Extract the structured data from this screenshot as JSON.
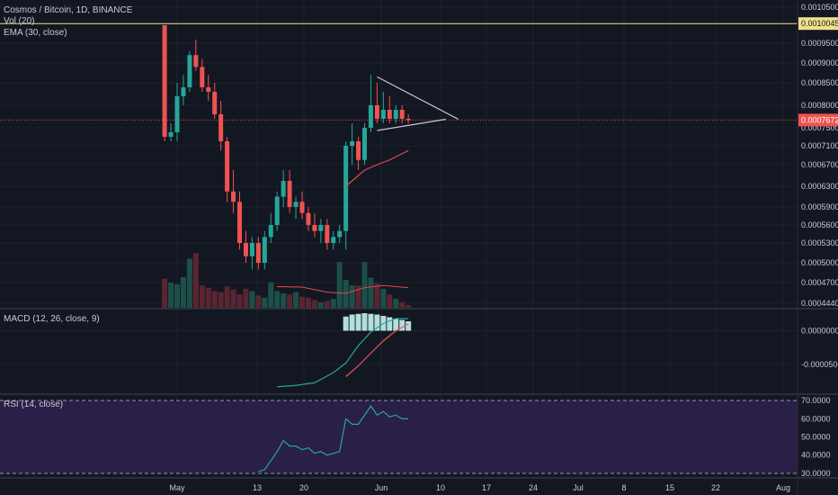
{
  "header": {
    "symbol_line": "Cosmos / Bitcoin, 1D, BINANCE",
    "ema_label": "EMA (30, close)",
    "vol_label": "Vol (20)",
    "macd_label": "MACD (12, 26, close, 9)",
    "rsi_label": "RSI (14, close)"
  },
  "price_axis": {
    "ticks": [
      "0.0010500",
      "0.0009500",
      "0.0009000",
      "0.0008500",
      "0.0008000",
      "0.0007500",
      "0.0007100",
      "0.0006700",
      "0.0006300",
      "0.0005900",
      "0.0005600",
      "0.0005300",
      "0.0005000",
      "0.0004700",
      "0.0004440"
    ],
    "alert_level": "0.0010045",
    "last_price": "0.0007672"
  },
  "macd_axis": {
    "ticks": [
      "0.0000000",
      "-0.0000500"
    ]
  },
  "rsi_axis": {
    "ticks": [
      "70.0000",
      "60.0000",
      "50.0000",
      "40.0000",
      "30.0000"
    ]
  },
  "time_axis": {
    "ticks": [
      "May",
      "13",
      "20",
      "Jun",
      "10",
      "17",
      "24",
      "Jul",
      "8",
      "15",
      "22",
      "Aug"
    ]
  },
  "colors": {
    "background": "#131722",
    "grid": "#1e222d",
    "up": "#26a69a",
    "down": "#ef5350",
    "up_volume": "#1d4f49",
    "down_volume": "#5a2530",
    "ema": "#e64a4a",
    "macd_line": "#26a69a",
    "signal_line": "#ef5350",
    "rsi_line": "#26a69a",
    "rsi_band": "#2a1f48",
    "alert_line": "#f0e08a",
    "triangle": "#c8c8c8",
    "axis_text": "#c7cbd4"
  },
  "chart_data": {
    "type": "candlestick",
    "interval": "1D",
    "price_ticks": [
      0.00105,
      0.00095,
      0.0009,
      0.00085,
      0.0008,
      0.00075,
      0.00071,
      0.00067,
      0.00063,
      0.00059,
      0.00056,
      0.00053,
      0.0005,
      0.00047,
      0.000444
    ],
    "candles": [
      {
        "day": -2,
        "o": 0.001,
        "h": 0.001,
        "l": 0.00072,
        "c": 0.00073
      },
      {
        "day": -1,
        "o": 0.00073,
        "h": 0.00076,
        "l": 0.00072,
        "c": 0.00074
      },
      {
        "day": 0,
        "o": 0.00074,
        "h": 0.00085,
        "l": 0.00072,
        "c": 0.00082
      },
      {
        "day": 1,
        "o": 0.00082,
        "h": 0.00087,
        "l": 0.0008,
        "c": 0.00084
      },
      {
        "day": 2,
        "o": 0.00084,
        "h": 0.00093,
        "l": 0.00083,
        "c": 0.00092
      },
      {
        "day": 3,
        "o": 0.00092,
        "h": 0.00096,
        "l": 0.00088,
        "c": 0.00089
      },
      {
        "day": 4,
        "o": 0.00089,
        "h": 0.00091,
        "l": 0.00083,
        "c": 0.00084
      },
      {
        "day": 5,
        "o": 0.00084,
        "h": 0.00087,
        "l": 0.00081,
        "c": 0.00083
      },
      {
        "day": 6,
        "o": 0.00083,
        "h": 0.00085,
        "l": 0.00077,
        "c": 0.00078
      },
      {
        "day": 7,
        "o": 0.00078,
        "h": 0.00081,
        "l": 0.0007,
        "c": 0.00072
      },
      {
        "day": 8,
        "o": 0.00072,
        "h": 0.00073,
        "l": 0.0006,
        "c": 0.00062
      },
      {
        "day": 9,
        "o": 0.00062,
        "h": 0.00066,
        "l": 0.00058,
        "c": 0.0006
      },
      {
        "day": 10,
        "o": 0.0006,
        "h": 0.00062,
        "l": 0.00052,
        "c": 0.00053
      },
      {
        "day": 11,
        "o": 0.00053,
        "h": 0.00055,
        "l": 0.0005,
        "c": 0.00051
      },
      {
        "day": 12,
        "o": 0.00051,
        "h": 0.00054,
        "l": 0.00049,
        "c": 0.00053
      },
      {
        "day": 13,
        "o": 0.00053,
        "h": 0.00054,
        "l": 0.00049,
        "c": 0.0005
      },
      {
        "day": 14,
        "o": 0.0005,
        "h": 0.00055,
        "l": 0.00049,
        "c": 0.00054
      },
      {
        "day": 15,
        "o": 0.00054,
        "h": 0.00058,
        "l": 0.00053,
        "c": 0.00056
      },
      {
        "day": 16,
        "o": 0.00056,
        "h": 0.00062,
        "l": 0.00055,
        "c": 0.00061
      },
      {
        "day": 17,
        "o": 0.00061,
        "h": 0.00066,
        "l": 0.00059,
        "c": 0.00064
      },
      {
        "day": 18,
        "o": 0.00064,
        "h": 0.00066,
        "l": 0.00058,
        "c": 0.00059
      },
      {
        "day": 19,
        "o": 0.00059,
        "h": 0.00061,
        "l": 0.00057,
        "c": 0.0006
      },
      {
        "day": 20,
        "o": 0.0006,
        "h": 0.00062,
        "l": 0.00057,
        "c": 0.00058
      },
      {
        "day": 21,
        "o": 0.00058,
        "h": 0.00059,
        "l": 0.00055,
        "c": 0.00056
      },
      {
        "day": 22,
        "o": 0.00056,
        "h": 0.00058,
        "l": 0.00054,
        "c": 0.00055
      },
      {
        "day": 23,
        "o": 0.00055,
        "h": 0.00057,
        "l": 0.00053,
        "c": 0.00056
      },
      {
        "day": 24,
        "o": 0.00056,
        "h": 0.00057,
        "l": 0.00052,
        "c": 0.00053
      },
      {
        "day": 25,
        "o": 0.00053,
        "h": 0.00055,
        "l": 0.00052,
        "c": 0.00054
      },
      {
        "day": 26,
        "o": 0.00054,
        "h": 0.00056,
        "l": 0.00053,
        "c": 0.00055
      },
      {
        "day": 27,
        "o": 0.00055,
        "h": 0.00072,
        "l": 0.00052,
        "c": 0.00071
      },
      {
        "day": 28,
        "o": 0.00071,
        "h": 0.00076,
        "l": 0.00067,
        "c": 0.00072
      },
      {
        "day": 29,
        "o": 0.00072,
        "h": 0.00073,
        "l": 0.00066,
        "c": 0.00068
      },
      {
        "day": 30,
        "o": 0.00068,
        "h": 0.00076,
        "l": 0.00067,
        "c": 0.00075
      },
      {
        "day": 31,
        "o": 0.00075,
        "h": 0.00087,
        "l": 0.00074,
        "c": 0.0008
      },
      {
        "day": 32,
        "o": 0.0008,
        "h": 0.00085,
        "l": 0.00076,
        "c": 0.00077
      },
      {
        "day": 33,
        "o": 0.00077,
        "h": 0.00083,
        "l": 0.00076,
        "c": 0.00079
      },
      {
        "day": 34,
        "o": 0.00079,
        "h": 0.00082,
        "l": 0.00076,
        "c": 0.00077
      },
      {
        "day": 35,
        "o": 0.00077,
        "h": 0.0008,
        "l": 0.00076,
        "c": 0.00079
      },
      {
        "day": 36,
        "o": 0.00079,
        "h": 0.0008,
        "l": 0.00076,
        "c": 0.00077
      },
      {
        "day": 37,
        "o": 0.00077,
        "h": 0.00078,
        "l": 0.00076,
        "c": 0.000767
      }
    ],
    "ema30": [
      {
        "day": 27,
        "v": 0.00063
      },
      {
        "day": 28,
        "v": 0.00064
      },
      {
        "day": 30,
        "v": 0.00066
      },
      {
        "day": 32,
        "v": 0.00067
      },
      {
        "day": 34,
        "v": 0.00068
      },
      {
        "day": 37,
        "v": 0.0007
      }
    ],
    "volume": [
      0.52,
      0.45,
      0.42,
      0.55,
      0.88,
      0.98,
      0.4,
      0.36,
      0.3,
      0.28,
      0.38,
      0.33,
      0.24,
      0.34,
      0.3,
      0.22,
      0.18,
      0.46,
      0.3,
      0.26,
      0.24,
      0.28,
      0.2,
      0.18,
      0.14,
      0.1,
      0.12,
      0.16,
      0.82,
      0.5,
      0.4,
      0.4,
      0.82,
      0.54,
      0.44,
      0.34,
      0.24,
      0.16,
      0.1,
      0.05
    ],
    "vol_ma": [
      {
        "day": 16,
        "v": 0.38
      },
      {
        "day": 20,
        "v": 0.37
      },
      {
        "day": 24,
        "v": 0.28
      },
      {
        "day": 27,
        "v": 0.26
      },
      {
        "day": 30,
        "v": 0.36
      },
      {
        "day": 33,
        "v": 0.4
      },
      {
        "day": 37,
        "v": 0.36
      }
    ],
    "vol_max": 1.0,
    "macd": {
      "ylim": [
        -9e-05,
        3e-05
      ],
      "line": [
        {
          "day": 16,
          "v": -8.3e-05
        },
        {
          "day": 19,
          "v": -8.1e-05
        },
        {
          "day": 22,
          "v": -7.7e-05
        },
        {
          "day": 25,
          "v": -6.2e-05
        },
        {
          "day": 27,
          "v": -4.8e-05
        },
        {
          "day": 29,
          "v": -2.2e-05
        },
        {
          "day": 31,
          "v": -2e-06
        },
        {
          "day": 33,
          "v": 1.1e-05
        },
        {
          "day": 35,
          "v": 1.8e-05
        },
        {
          "day": 37,
          "v": 1.8e-05
        }
      ],
      "signal": [
        {
          "day": 27,
          "v": -6.8e-05
        },
        {
          "day": 29,
          "v": -5.2e-05
        },
        {
          "day": 31,
          "v": -3.3e-05
        },
        {
          "day": 33,
          "v": -1.5e-05
        },
        {
          "day": 35,
          "v": 0.0
        },
        {
          "day": 37,
          "v": 1e-05
        }
      ],
      "histogram": [
        {
          "day": 27,
          "v": 2.1e-05
        },
        {
          "day": 28,
          "v": 2.4e-05
        },
        {
          "day": 29,
          "v": 2.5e-05
        },
        {
          "day": 30,
          "v": 2.6e-05
        },
        {
          "day": 31,
          "v": 2.5e-05
        },
        {
          "day": 32,
          "v": 2.4e-05
        },
        {
          "day": 33,
          "v": 2.2e-05
        },
        {
          "day": 34,
          "v": 2e-05
        },
        {
          "day": 35,
          "v": 1.8e-05
        },
        {
          "day": 36,
          "v": 1.6e-05
        },
        {
          "day": 37,
          "v": 1.4e-05
        }
      ]
    },
    "rsi": {
      "ylim": [
        28,
        72
      ],
      "upper": 70,
      "lower": 30,
      "line": [
        {
          "day": 13,
          "v": 31
        },
        {
          "day": 14,
          "v": 32
        },
        {
          "day": 15,
          "v": 37
        },
        {
          "day": 16,
          "v": 42
        },
        {
          "day": 17,
          "v": 48
        },
        {
          "day": 18,
          "v": 45
        },
        {
          "day": 19,
          "v": 45
        },
        {
          "day": 20,
          "v": 43
        },
        {
          "day": 21,
          "v": 44
        },
        {
          "day": 22,
          "v": 41
        },
        {
          "day": 23,
          "v": 42
        },
        {
          "day": 24,
          "v": 40
        },
        {
          "day": 25,
          "v": 41
        },
        {
          "day": 26,
          "v": 42
        },
        {
          "day": 27,
          "v": 60
        },
        {
          "day": 28,
          "v": 57
        },
        {
          "day": 29,
          "v": 57
        },
        {
          "day": 30,
          "v": 62
        },
        {
          "day": 31,
          "v": 67
        },
        {
          "day": 32,
          "v": 62
        },
        {
          "day": 33,
          "v": 64
        },
        {
          "day": 34,
          "v": 61
        },
        {
          "day": 35,
          "v": 62
        },
        {
          "day": 36,
          "v": 60
        },
        {
          "day": 37,
          "v": 60
        }
      ]
    },
    "triangle_pattern": {
      "upper": [
        {
          "day": 32,
          "v": 0.000865
        },
        {
          "day": 45,
          "v": 0.000769
        }
      ],
      "lower": [
        {
          "day": 32,
          "v": 0.000744
        },
        {
          "day": 43,
          "v": 0.000769
        }
      ],
      "apex_day": 45
    }
  }
}
